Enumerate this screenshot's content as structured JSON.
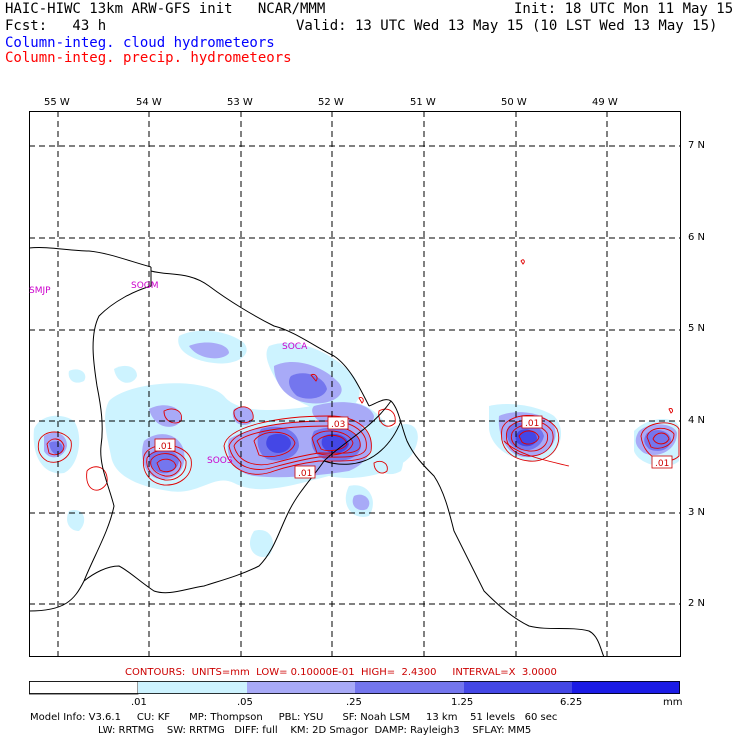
{
  "header": {
    "title": "HAIC-HIWC 13km ARW-GFS init   NCAR/MMM",
    "init": "Init: 18 UTC Mon 11 May 15",
    "forecast": "Fcst:   43 h",
    "valid": "Valid: 13 UTC Wed 13 May 15 (10 LST Wed 13 May 15)",
    "field_cloud": "Column-integ. cloud hydrometeors",
    "field_precip": "Column-integ. precip. hydrometeors"
  },
  "colors": {
    "cloud_text": "#0000ff",
    "precip_text": "#ff0000",
    "station_text": "#cc00cc",
    "fill_1": "#cdf3ff",
    "fill_2": "#a8aaf7",
    "fill_3": "#7476ee",
    "fill_4": "#4447e6",
    "fill_5": "#1b1be6",
    "contour": "#e00000",
    "coast": "#000000",
    "grid": "#000000"
  },
  "axes": {
    "lon_labels": [
      "55 W",
      "54 W",
      "53 W",
      "52 W",
      "51 W",
      "50 W",
      "49 W"
    ],
    "lat_labels": [
      "7 N",
      "6 N",
      "5 N",
      "4 N",
      "3 N",
      "2 N"
    ]
  },
  "stations": [
    "SMJP",
    "SOGM",
    "SOCA",
    "SOOS"
  ],
  "contour_labels": [
    ".01",
    ".03",
    ".01",
    ".01",
    ".01"
  ],
  "contour_info": {
    "contours": "CONTOURS:",
    "units": "UNITS=mm",
    "low": "LOW= 0.10000E-01",
    "high": "HIGH=  2.4300",
    "interval": "INTERVAL=X  3.0000"
  },
  "colorbar": {
    "labels": [
      ".01",
      ".05",
      ".25",
      "1.25",
      "6.25"
    ],
    "units": "mm"
  },
  "footer": {
    "line1": [
      "Model Info: V3.6.1",
      "CU: KF",
      "MP: Thompson",
      "PBL: YSU",
      "SF: Noah LSM",
      "13 km",
      "51 levels",
      "60 sec"
    ],
    "line2": [
      "LW: RRTMG",
      "SW: RRTMG",
      "DIFF: full",
      "KM: 2D Smagor",
      "DAMP: Rayleigh3",
      "SFLAY: MM5"
    ]
  }
}
